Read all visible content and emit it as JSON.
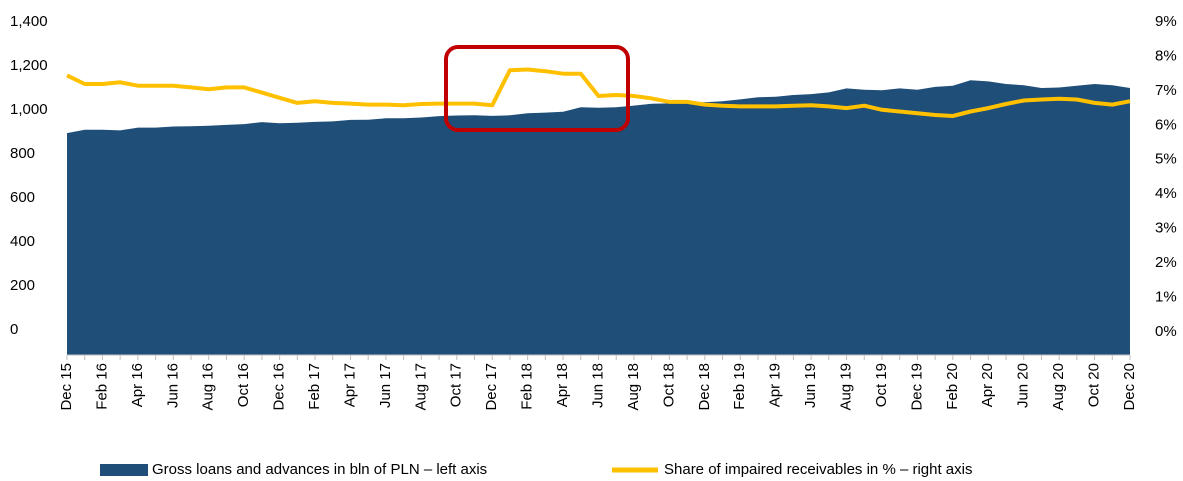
{
  "chart_data": {
    "type": "area-line",
    "categories": [
      "Dec 15",
      null,
      "Feb 16",
      null,
      "Apr 16",
      null,
      "Jun 16",
      null,
      "Aug 16",
      null,
      "Oct 16",
      null,
      "Dec 16",
      null,
      "Feb 17",
      null,
      "Apr 17",
      null,
      "Jun 17",
      null,
      "Aug 17",
      null,
      "Oct 17",
      null,
      "Dec 17",
      null,
      "Feb 18",
      null,
      "Apr 18",
      null,
      "Jun 18",
      null,
      "Aug 18",
      null,
      "Oct 18",
      null,
      "Dec 18",
      null,
      "Feb 19",
      null,
      "Apr 19",
      null,
      "Jun 19",
      null,
      "Aug 19",
      null,
      "Oct 19",
      null,
      "Dec 19",
      null,
      "Feb 20",
      null,
      "Apr 20",
      null,
      "Jun 20",
      null,
      "Aug 20",
      null,
      "Oct 20",
      null,
      "Dec 20"
    ],
    "series": [
      {
        "name": "Gross loans and advances in bln of PLN – left axis",
        "color": "#1f4e79",
        "type": "area",
        "values": [
          895,
          910,
          910,
          907,
          920,
          920,
          925,
          926,
          928,
          932,
          936,
          945,
          940,
          942,
          946,
          948,
          955,
          956,
          962,
          962,
          966,
          972,
          975,
          976,
          973,
          976,
          985,
          988,
          992,
          1012,
          1010,
          1012,
          1020,
          1028,
          1030,
          1035,
          1035,
          1040,
          1048,
          1058,
          1060,
          1068,
          1072,
          1080,
          1098,
          1092,
          1090,
          1098,
          1092,
          1105,
          1110,
          1135,
          1130,
          1118,
          1112,
          1100,
          1102,
          1110,
          1118,
          1112,
          1100
        ]
      },
      {
        "name": "Share of impaired receivables in % – right axis",
        "color": "#ffc000",
        "type": "line",
        "axis": "y2",
        "values": [
          7.45,
          7.2,
          7.2,
          7.25,
          7.15,
          7.15,
          7.15,
          7.1,
          7.05,
          7.1,
          7.1,
          6.95,
          6.8,
          6.65,
          6.7,
          6.65,
          6.63,
          6.6,
          6.6,
          6.58,
          6.62,
          6.63,
          6.63,
          6.63,
          6.58,
          7.6,
          7.62,
          7.57,
          7.5,
          7.5,
          6.85,
          6.88,
          6.85,
          6.78,
          6.68,
          6.68,
          6.6,
          6.57,
          6.55,
          6.55,
          6.55,
          6.57,
          6.58,
          6.55,
          6.5,
          6.57,
          6.45,
          6.4,
          6.35,
          6.3,
          6.27,
          6.4,
          6.5,
          6.62,
          6.72,
          6.75,
          6.77,
          6.75,
          6.65,
          6.6,
          6.7
        ]
      }
    ],
    "ylim": [
      -114,
      1400
    ],
    "yticks": [
      0,
      200,
      400,
      600,
      800,
      {
        "value": 1000,
        "label": "1,000"
      },
      {
        "value": 1200,
        "label": "1,200"
      },
      {
        "value": 1400,
        "label": "1,400"
      }
    ],
    "y2lim": [
      -0.67,
      9
    ],
    "y2ticks": [
      {
        "value": 0,
        "label": "0%"
      },
      {
        "value": 1,
        "label": "1%"
      },
      {
        "value": 2,
        "label": "2%"
      },
      {
        "value": 3,
        "label": "3%"
      },
      {
        "value": 4,
        "label": "4%"
      },
      {
        "value": 5,
        "label": "5%"
      },
      {
        "value": 6,
        "label": "6%"
      },
      {
        "value": 7,
        "label": "7%"
      },
      {
        "value": 8,
        "label": "8%"
      },
      {
        "value": 9,
        "label": "9%"
      }
    ],
    "grid": false
  }
}
